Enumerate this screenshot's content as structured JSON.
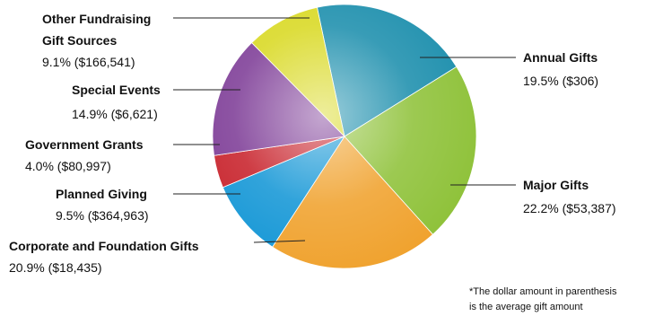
{
  "chart_data": {
    "type": "pie",
    "slices": [
      {
        "name": "Annual Gifts",
        "percent_label": "19.5% ($306)",
        "value": 19.5,
        "color": "#1d8fad"
      },
      {
        "name": "Major Gifts",
        "percent_label": "22.2% ($53,387)",
        "value": 22.2,
        "color": "#8fc23a"
      },
      {
        "name": "Corporate and Foundation Gifts",
        "percent_label": "20.9% ($18,435)",
        "value": 20.9,
        "color": "#f0a22e"
      },
      {
        "name": "Planned Giving",
        "percent_label": "9.5% ($364,963)",
        "value": 9.5,
        "color": "#1597d6"
      },
      {
        "name": "Government Grants",
        "percent_label": "4.0% ($80,997)",
        "value": 4.0,
        "color": "#c8232c"
      },
      {
        "name": "Special Events",
        "percent_label": "14.9% ($6,621)",
        "value": 14.9,
        "color": "#7e3d97"
      },
      {
        "name": "Other Fundraising Gift Sources",
        "percent_label": "9.1% ($166,541)",
        "value": 9.1,
        "color": "#d9d923"
      }
    ]
  },
  "labels": {
    "annual": {
      "line1": "Annual Gifts",
      "line2": "19.5% ($306)"
    },
    "major": {
      "line1": "Major Gifts",
      "line2": "22.2% ($53,387)"
    },
    "corporate": {
      "line1": "Corporate and Foundation Gifts",
      "line2": "20.9% ($18,435)"
    },
    "planned": {
      "line1": "Planned Giving",
      "line2": "9.5% ($364,963)"
    },
    "government": {
      "line1": "Government Grants",
      "line2": "4.0% ($80,997)"
    },
    "special": {
      "line1": "Special Events",
      "line2": "14.9% ($6,621)"
    },
    "other": {
      "line1": "Other Fundraising",
      "line2": "Gift Sources",
      "line3": "9.1% ($166,541)"
    }
  },
  "footnote": {
    "line1": "*The dollar amount in parenthesis",
    "line2": "is the average gift amount"
  }
}
